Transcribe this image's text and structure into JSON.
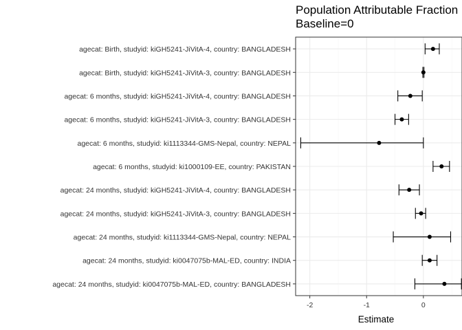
{
  "chart_data": {
    "type": "forest",
    "title": "Population Attributable Fraction",
    "subtitle": "Baseline=0",
    "xlabel": "Estimate",
    "ylabel": "",
    "xlim": [
      -2.25,
      0.68
    ],
    "xticks": [
      -2,
      -1,
      0
    ],
    "xtick_labels": [
      "-2",
      "-1",
      "0"
    ],
    "grid": true,
    "legend": "none",
    "rows": [
      {
        "label": "agecat: Birth, studyid: kiGH5241-JiVitA-4, country: BANGLADESH",
        "estimate": 0.17,
        "lower": 0.03,
        "upper": 0.28
      },
      {
        "label": "agecat: Birth, studyid: kiGH5241-JiVitA-3, country: BANGLADESH",
        "estimate": 0.0,
        "lower": -0.01,
        "upper": 0.01
      },
      {
        "label": "agecat: 6 months, studyid: kiGH5241-JiVitA-4, country: BANGLADESH",
        "estimate": -0.23,
        "lower": -0.45,
        "upper": -0.02
      },
      {
        "label": "agecat: 6 months, studyid: kiGH5241-JiVitA-3, country: BANGLADESH",
        "estimate": -0.38,
        "lower": -0.5,
        "upper": -0.26
      },
      {
        "label": "agecat: 6 months, studyid: ki1113344-GMS-Nepal, country: NEPAL",
        "estimate": -0.78,
        "lower": -2.16,
        "upper": 0.0
      },
      {
        "label": "agecat: 6 months, studyid: ki1000109-EE, country: PAKISTAN",
        "estimate": 0.32,
        "lower": 0.17,
        "upper": 0.46
      },
      {
        "label": "agecat: 24 months, studyid: kiGH5241-JiVitA-4, country: BANGLADESH",
        "estimate": -0.25,
        "lower": -0.43,
        "upper": -0.07
      },
      {
        "label": "agecat: 24 months, studyid: kiGH5241-JiVitA-3, country: BANGLADESH",
        "estimate": -0.04,
        "lower": -0.14,
        "upper": 0.04
      },
      {
        "label": "agecat: 24 months, studyid: ki1113344-GMS-Nepal, country: NEPAL",
        "estimate": 0.11,
        "lower": -0.53,
        "upper": 0.48
      },
      {
        "label": "agecat: 24 months, studyid: ki0047075b-MAL-ED, country: INDIA",
        "estimate": 0.11,
        "lower": -0.02,
        "upper": 0.24
      },
      {
        "label": "agecat: 24 months, studyid: ki0047075b-MAL-ED, country: BANGLADESH",
        "estimate": 0.37,
        "lower": -0.15,
        "upper": 0.67
      }
    ],
    "colors": {
      "point": "#000000",
      "errorbar": "#000000",
      "grid_major": "#ebebeb",
      "grid_minor": "#f5f5f5",
      "panel_border": "#333333"
    }
  }
}
